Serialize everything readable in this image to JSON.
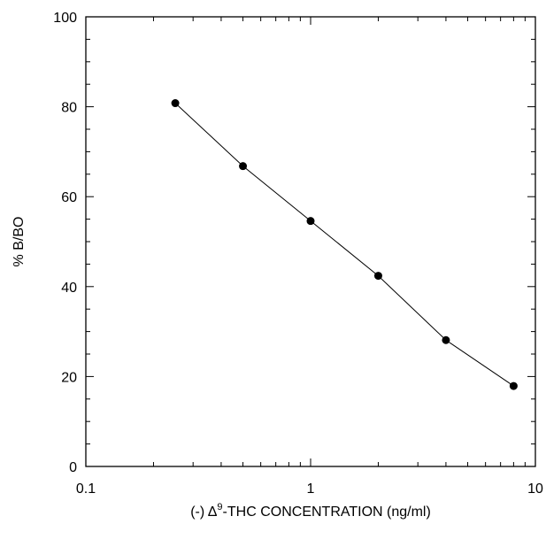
{
  "chart_data": {
    "type": "line",
    "title": "",
    "xlabel_prefix": "(-) Δ",
    "xlabel_sup": "9",
    "xlabel_suffix": "-THC CONCENTRATION  (ng/ml)",
    "ylabel": "% B/BO",
    "xscale": "log",
    "xlim": [
      0.1,
      10
    ],
    "ylim": [
      0,
      100
    ],
    "x_tick_labels": [
      "0.1",
      "1",
      "10"
    ],
    "y_tick_labels": [
      "0",
      "20",
      "40",
      "60",
      "80",
      "100"
    ],
    "grid": false,
    "legend": "none",
    "series": [
      {
        "x": [
          0.25,
          0.5,
          1,
          2,
          4,
          8
        ],
        "y": [
          80.8,
          66.8,
          54.6,
          42.4,
          28.1,
          17.9
        ],
        "color": "#000000",
        "marker": "circle"
      }
    ]
  }
}
